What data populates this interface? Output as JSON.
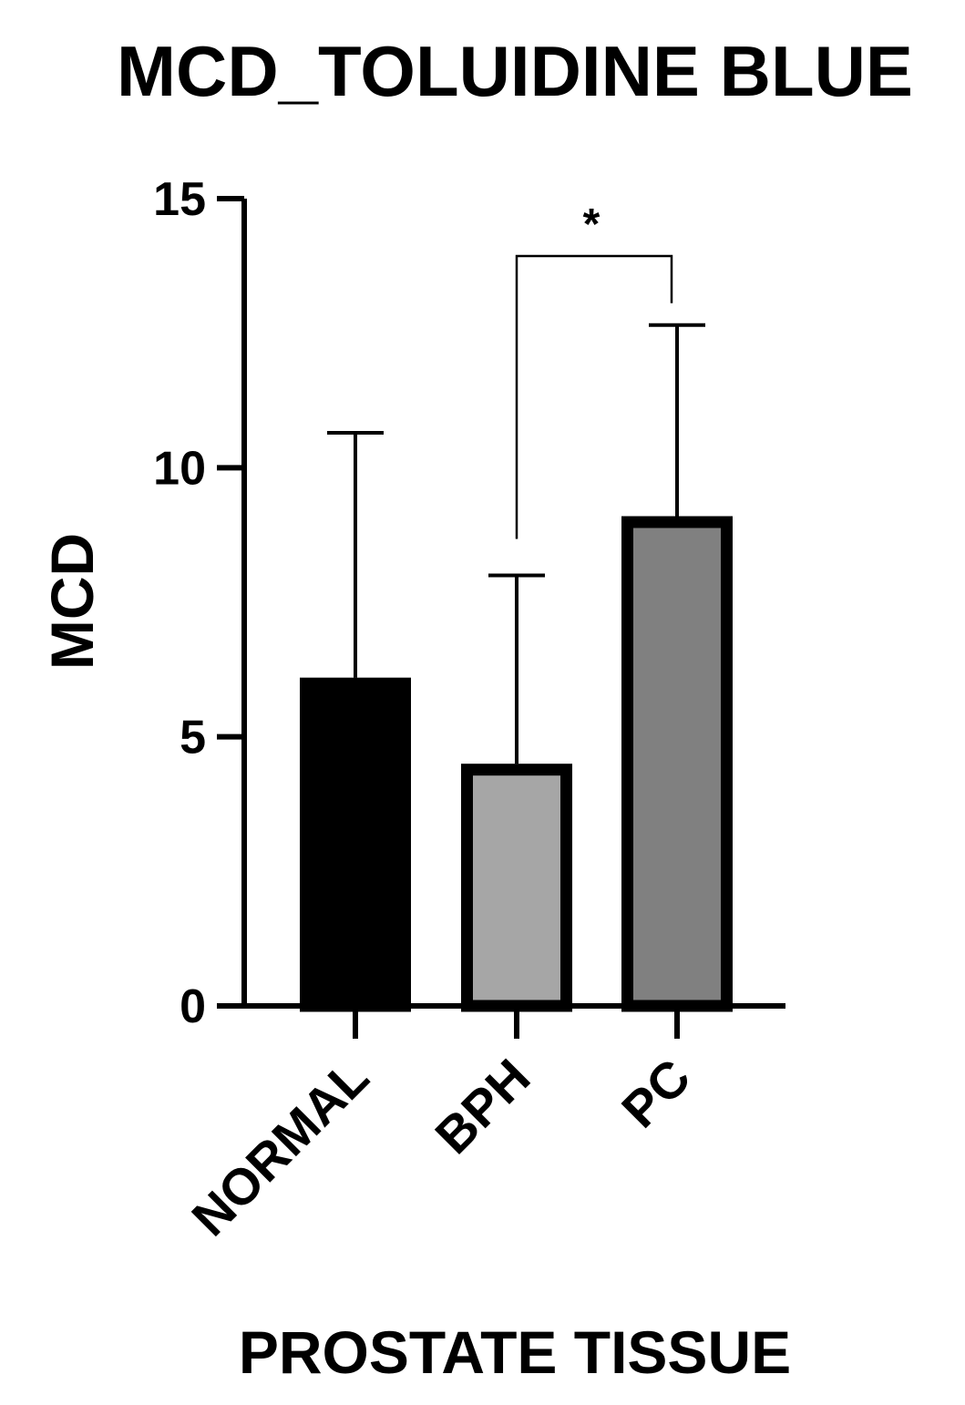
{
  "chart_data": {
    "type": "bar",
    "title": "MCD_TOLUIDINE BLUE",
    "xlabel": "PROSTATE TISSUE",
    "ylabel": "MCD",
    "categories": [
      "NORMAL",
      "BPH",
      "PC"
    ],
    "values": [
      6.1,
      4.5,
      9.1
    ],
    "error_upper": [
      10.65,
      8.0,
      12.65
    ],
    "bar_colors": [
      "#000000",
      "#a6a6a6",
      "#808080"
    ],
    "ylim": [
      0,
      15
    ],
    "yticks": [
      0,
      5,
      10,
      15
    ],
    "ytick_labels": [
      "0",
      "5",
      "10",
      "15"
    ],
    "grid": false,
    "significance": [
      {
        "from": 1,
        "to": 2,
        "label": "*"
      }
    ]
  }
}
